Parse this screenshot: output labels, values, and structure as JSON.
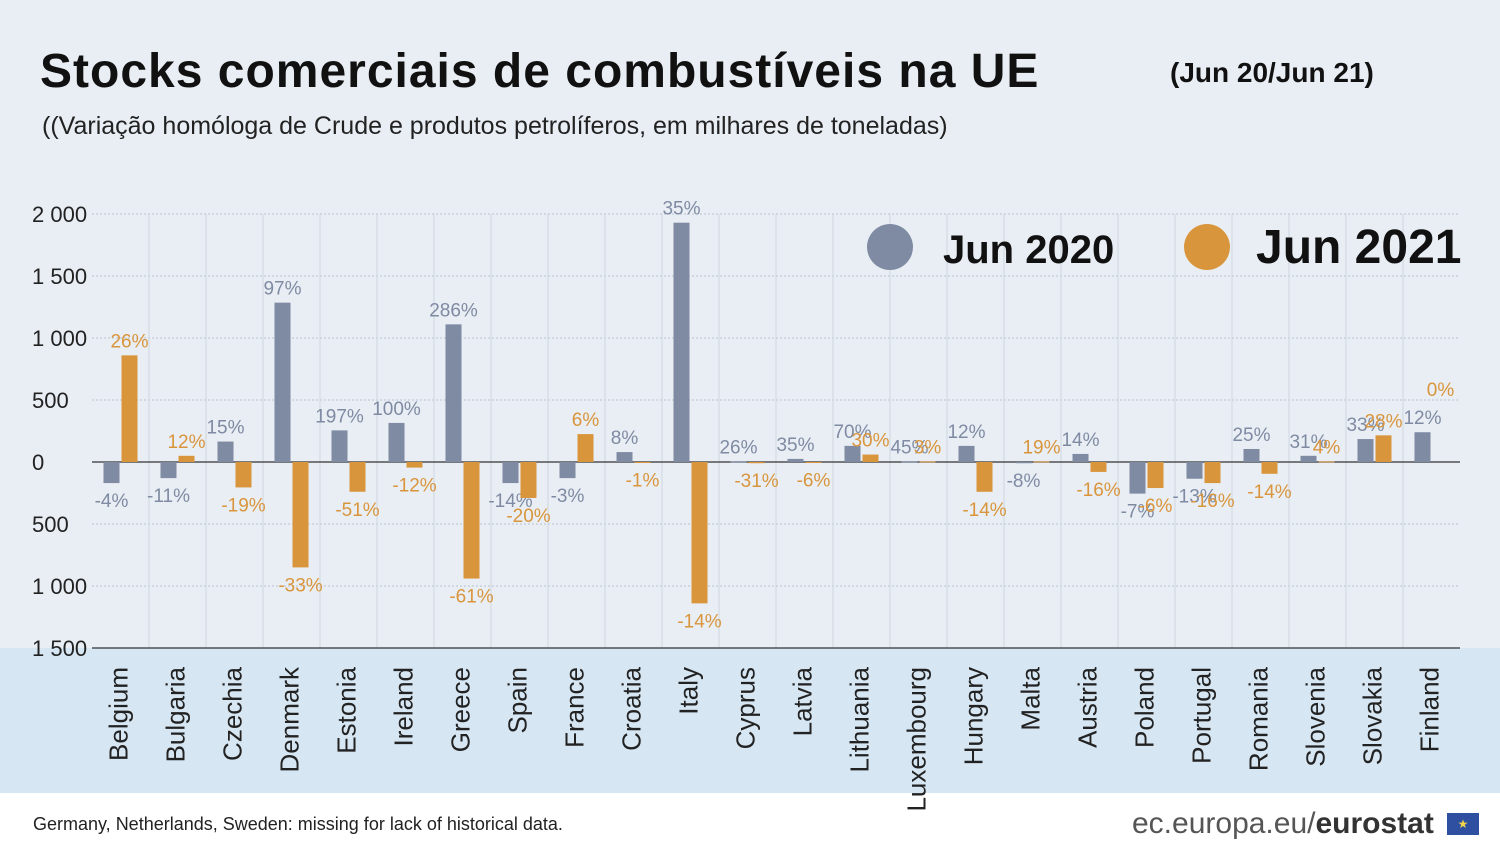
{
  "header": {
    "title": "Stocks comerciais de combustíveis na UE",
    "period": "(Jun 20/Jun 21)",
    "subtitle": "((Variação homóloga de Crude e produtos petrolíferos, em milhares de toneladas)"
  },
  "footer": {
    "note": "Germany, Netherlands, Sweden: missing for lack of historical data.",
    "brand_prefix": "ec.europa.eu/",
    "brand_name": "eurostat"
  },
  "colors": {
    "jun2020": "#7f8ba3",
    "jun2021": "#d9953c",
    "grid": "#b9c3cf"
  },
  "chart_data": {
    "type": "bar",
    "ylim": [
      -1500,
      2000
    ],
    "yticks": [
      2000,
      1500,
      1000,
      500,
      0,
      -500,
      -1000,
      -1500
    ],
    "ytick_labels": [
      "2 000",
      "1 500",
      "1 000",
      "500",
      "0",
      "500",
      "1 000",
      "1 500"
    ],
    "grid": true,
    "legend_position": "top-right",
    "categories": [
      "Belgium",
      "Bulgaria",
      "Czechia",
      "Denmark",
      "Estonia",
      "Ireland",
      "Greece",
      "Spain",
      "France",
      "Croatia",
      "Italy",
      "Cyprus",
      "Latvia",
      "Lithuania",
      "Luxembourg",
      "Hungary",
      "Malta",
      "Austria",
      "Poland",
      "Portugal",
      "Romania",
      "Slovenia",
      "Slovakia",
      "Finland"
    ],
    "series": [
      {
        "name": "Jun 2020",
        "values": [
          -170,
          -130,
          165,
          1285,
          255,
          315,
          1110,
          -170,
          -130,
          80,
          1930,
          5,
          25,
          130,
          5,
          130,
          -10,
          65,
          -255,
          -135,
          105,
          50,
          185,
          240
        ],
        "labels": [
          "-4%",
          "-11%",
          "15%",
          "97%",
          "197%",
          "100%",
          "286%",
          "-14%",
          "-3%",
          "8%",
          "35%",
          "26%",
          "35%",
          "70%",
          "45%",
          "12%",
          "-8%",
          "14%",
          "-7%",
          "-13%",
          "25%",
          "31%",
          "33%",
          "12%"
        ]
      },
      {
        "name": "Jun 2021",
        "values": [
          860,
          50,
          -205,
          -850,
          -240,
          -45,
          -940,
          -290,
          225,
          -5,
          -1140,
          -10,
          -5,
          60,
          5,
          -240,
          5,
          -80,
          -210,
          -170,
          -95,
          5,
          215,
          null
        ],
        "labels": [
          "26%",
          "12%",
          "-19%",
          "-33%",
          "-51%",
          "-12%",
          "-61%",
          "-20%",
          "6%",
          "-1%",
          "-14%",
          "-31%",
          "-6%",
          "30%",
          "3%",
          "-14%",
          "19%",
          "-16%",
          "-6%",
          "-16%",
          "-14%",
          "4%",
          "28%",
          "0%"
        ]
      }
    ]
  }
}
